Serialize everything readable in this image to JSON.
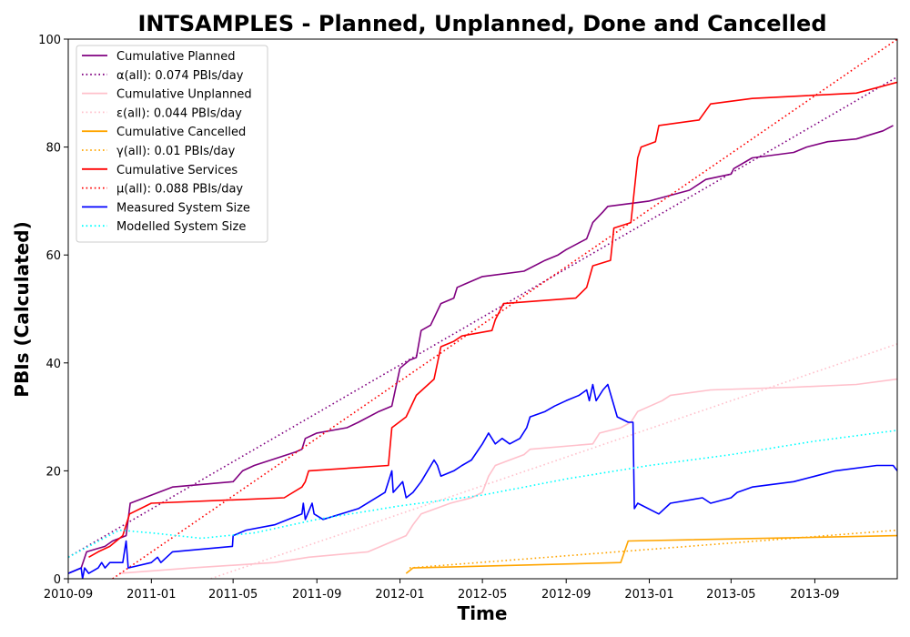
{
  "chart_data": {
    "type": "line",
    "title": "INTSAMPLES - Planned, Unplanned, Done  and Cancelled",
    "xlabel": "Time",
    "ylabel": "PBIs (Calculated)",
    "x_range": [
      "2010-09-01",
      "2013-12-31"
    ],
    "ylim": [
      0,
      100
    ],
    "x_ticks": [
      "2010-09",
      "2011-01",
      "2011-05",
      "2011-09",
      "2012-01",
      "2012-05",
      "2012-09",
      "2013-01",
      "2013-05",
      "2013-09"
    ],
    "y_ticks": [
      0,
      20,
      40,
      60,
      80,
      100
    ],
    "grid": false,
    "legend_position": "top-left",
    "series": [
      {
        "name": "Cumulative Planned",
        "color": "#800080",
        "style": "solid",
        "points": [
          [
            "2010-09-01",
            1
          ],
          [
            "2010-09-20",
            2
          ],
          [
            "2010-09-28",
            5
          ],
          [
            "2010-10-25",
            6
          ],
          [
            "2010-11-05",
            7
          ],
          [
            "2010-11-25",
            8
          ],
          [
            "2010-12-01",
            14
          ],
          [
            "2011-01-01",
            15.5
          ],
          [
            "2011-02-01",
            17
          ],
          [
            "2011-05-01",
            18
          ],
          [
            "2011-05-15",
            20
          ],
          [
            "2011-06-01",
            21
          ],
          [
            "2011-08-01",
            23.5
          ],
          [
            "2011-08-10",
            24
          ],
          [
            "2011-08-15",
            26
          ],
          [
            "2011-09-01",
            27
          ],
          [
            "2011-10-15",
            28
          ],
          [
            "2011-11-01",
            29
          ],
          [
            "2011-12-01",
            31
          ],
          [
            "2011-12-20",
            32
          ],
          [
            "2012-01-01",
            39
          ],
          [
            "2012-01-15",
            40.5
          ],
          [
            "2012-01-25",
            41
          ],
          [
            "2012-02-01",
            46
          ],
          [
            "2012-02-15",
            47
          ],
          [
            "2012-03-01",
            51
          ],
          [
            "2012-03-20",
            52
          ],
          [
            "2012-03-25",
            54
          ],
          [
            "2012-05-01",
            56
          ],
          [
            "2012-07-01",
            57
          ],
          [
            "2012-08-01",
            59
          ],
          [
            "2012-08-20",
            60
          ],
          [
            "2012-09-01",
            61
          ],
          [
            "2012-10-01",
            63
          ],
          [
            "2012-10-10",
            66
          ],
          [
            "2012-10-25",
            68
          ],
          [
            "2012-11-01",
            69
          ],
          [
            "2013-01-01",
            70
          ],
          [
            "2013-03-01",
            72
          ],
          [
            "2013-03-25",
            74
          ],
          [
            "2013-05-01",
            75
          ],
          [
            "2013-05-05",
            76
          ],
          [
            "2013-06-01",
            78
          ],
          [
            "2013-08-01",
            79
          ],
          [
            "2013-08-20",
            80
          ],
          [
            "2013-09-20",
            81
          ],
          [
            "2013-11-01",
            81.5
          ],
          [
            "2013-12-10",
            83
          ],
          [
            "2013-12-25",
            84
          ]
        ]
      },
      {
        "name": "α(all): 0.074 PBIs/day",
        "color": "#800080",
        "style": "dotted",
        "points": [
          [
            "2010-09-01",
            4
          ],
          [
            "2013-12-31",
            93
          ]
        ]
      },
      {
        "name": "Cumulative Unplanned",
        "color": "#ffc0cb",
        "style": "solid",
        "points": [
          [
            "2010-11-15",
            1
          ],
          [
            "2011-03-01",
            2
          ],
          [
            "2011-07-01",
            3
          ],
          [
            "2011-08-20",
            4
          ],
          [
            "2011-11-15",
            5
          ],
          [
            "2012-01-10",
            8
          ],
          [
            "2012-01-20",
            10
          ],
          [
            "2012-02-01",
            12
          ],
          [
            "2012-03-15",
            14
          ],
          [
            "2012-04-15",
            15
          ],
          [
            "2012-05-01",
            16
          ],
          [
            "2012-05-10",
            19
          ],
          [
            "2012-05-20",
            21
          ],
          [
            "2012-06-10",
            22
          ],
          [
            "2012-07-01",
            23
          ],
          [
            "2012-07-10",
            24
          ],
          [
            "2012-10-10",
            25
          ],
          [
            "2012-10-20",
            27
          ],
          [
            "2012-11-20",
            28
          ],
          [
            "2012-12-05",
            29
          ],
          [
            "2012-12-15",
            31
          ],
          [
            "2013-01-20",
            33
          ],
          [
            "2013-02-01",
            34
          ],
          [
            "2013-04-01",
            35
          ],
          [
            "2013-08-01",
            35.5
          ],
          [
            "2013-11-01",
            36
          ],
          [
            "2013-12-31",
            37
          ]
        ]
      },
      {
        "name": "ε(all): 0.044 PBIs/day",
        "color": "#ffc0cb",
        "style": "dotted",
        "points": [
          [
            "2010-09-01",
            -9
          ],
          [
            "2013-12-31",
            43.5
          ]
        ]
      },
      {
        "name": "Cumulative Cancelled",
        "color": "#ffa500",
        "style": "solid",
        "points": [
          [
            "2012-01-10",
            1
          ],
          [
            "2012-01-20",
            2
          ],
          [
            "2012-11-20",
            3
          ],
          [
            "2012-12-01",
            7
          ],
          [
            "2013-12-31",
            8
          ]
        ]
      },
      {
        "name": "γ(all): 0.01 PBIs/day",
        "color": "#ffa500",
        "style": "dotted",
        "points": [
          [
            "2012-01-15",
            2
          ],
          [
            "2013-12-31",
            9
          ]
        ]
      },
      {
        "name": "Cumulative Services",
        "color": "#ff0000",
        "style": "solid",
        "points": [
          [
            "2010-10-01",
            4
          ],
          [
            "2010-10-15",
            5
          ],
          [
            "2010-11-01",
            6
          ],
          [
            "2010-11-20",
            8
          ],
          [
            "2010-11-30",
            12
          ],
          [
            "2011-01-01",
            14
          ],
          [
            "2011-07-15",
            15
          ],
          [
            "2011-08-10",
            17
          ],
          [
            "2011-08-15",
            18
          ],
          [
            "2011-08-20",
            20
          ],
          [
            "2011-12-15",
            21
          ],
          [
            "2011-12-20",
            28
          ],
          [
            "2012-01-10",
            30
          ],
          [
            "2012-01-25",
            34
          ],
          [
            "2012-02-20",
            37
          ],
          [
            "2012-03-01",
            43
          ],
          [
            "2012-03-20",
            44
          ],
          [
            "2012-04-01",
            45
          ],
          [
            "2012-05-15",
            46
          ],
          [
            "2012-05-20",
            48
          ],
          [
            "2012-06-01",
            51
          ],
          [
            "2012-09-15",
            52
          ],
          [
            "2012-10-01",
            54
          ],
          [
            "2012-10-10",
            58
          ],
          [
            "2012-11-05",
            59
          ],
          [
            "2012-11-10",
            65
          ],
          [
            "2012-12-05",
            66
          ],
          [
            "2012-12-15",
            78
          ],
          [
            "2012-12-20",
            80
          ],
          [
            "2013-01-10",
            81
          ],
          [
            "2013-01-15",
            84
          ],
          [
            "2013-03-15",
            85
          ],
          [
            "2013-04-01",
            88
          ],
          [
            "2013-06-01",
            89
          ],
          [
            "2013-11-01",
            90
          ],
          [
            "2013-12-31",
            92
          ]
        ]
      },
      {
        "name": "μ(all): 0.088 PBIs/day",
        "color": "#ff0000",
        "style": "dotted",
        "points": [
          [
            "2010-11-05",
            0
          ],
          [
            "2013-12-31",
            100
          ]
        ]
      },
      {
        "name": "Measured System Size",
        "color": "#0000ff",
        "style": "solid",
        "points": [
          [
            "2010-09-01",
            1
          ],
          [
            "2010-09-20",
            2
          ],
          [
            "2010-09-22",
            0
          ],
          [
            "2010-09-25",
            2
          ],
          [
            "2010-10-01",
            1
          ],
          [
            "2010-10-15",
            2
          ],
          [
            "2010-10-20",
            3
          ],
          [
            "2010-10-25",
            2
          ],
          [
            "2010-11-01",
            3
          ],
          [
            "2010-11-20",
            3
          ],
          [
            "2010-11-25",
            7
          ],
          [
            "2010-11-28",
            2
          ],
          [
            "2011-01-01",
            3
          ],
          [
            "2011-01-10",
            4
          ],
          [
            "2011-01-15",
            3
          ],
          [
            "2011-02-01",
            5
          ],
          [
            "2011-04-30",
            6
          ],
          [
            "2011-05-01",
            8
          ],
          [
            "2011-05-20",
            9
          ],
          [
            "2011-07-01",
            10
          ],
          [
            "2011-08-10",
            12
          ],
          [
            "2011-08-12",
            14
          ],
          [
            "2011-08-15",
            11
          ],
          [
            "2011-08-25",
            14
          ],
          [
            "2011-08-28",
            12
          ],
          [
            "2011-09-10",
            11
          ],
          [
            "2011-11-01",
            13
          ],
          [
            "2011-12-10",
            16
          ],
          [
            "2011-12-20",
            20
          ],
          [
            "2011-12-22",
            16
          ],
          [
            "2012-01-05",
            18
          ],
          [
            "2012-01-10",
            15
          ],
          [
            "2012-01-20",
            16
          ],
          [
            "2012-02-01",
            18
          ],
          [
            "2012-02-20",
            22
          ],
          [
            "2012-02-25",
            21
          ],
          [
            "2012-03-01",
            19
          ],
          [
            "2012-03-20",
            20
          ],
          [
            "2012-04-01",
            21
          ],
          [
            "2012-04-15",
            22
          ],
          [
            "2012-05-01",
            25
          ],
          [
            "2012-05-10",
            27
          ],
          [
            "2012-05-20",
            25
          ],
          [
            "2012-05-30",
            26
          ],
          [
            "2012-06-10",
            25
          ],
          [
            "2012-06-25",
            26
          ],
          [
            "2012-07-05",
            28
          ],
          [
            "2012-07-10",
            30
          ],
          [
            "2012-08-01",
            31
          ],
          [
            "2012-08-15",
            32
          ],
          [
            "2012-09-01",
            33
          ],
          [
            "2012-09-20",
            34
          ],
          [
            "2012-10-01",
            35
          ],
          [
            "2012-10-05",
            33
          ],
          [
            "2012-10-10",
            36
          ],
          [
            "2012-10-15",
            33
          ],
          [
            "2012-10-25",
            35
          ],
          [
            "2012-11-01",
            36
          ],
          [
            "2012-11-15",
            30
          ],
          [
            "2012-12-01",
            29
          ],
          [
            "2012-12-08",
            29
          ],
          [
            "2012-12-10",
            13
          ],
          [
            "2012-12-15",
            14
          ],
          [
            "2013-01-15",
            12
          ],
          [
            "2013-02-01",
            14
          ],
          [
            "2013-03-20",
            15
          ],
          [
            "2013-04-01",
            14
          ],
          [
            "2013-05-01",
            15
          ],
          [
            "2013-05-10",
            16
          ],
          [
            "2013-06-01",
            17
          ],
          [
            "2013-08-01",
            18
          ],
          [
            "2013-09-01",
            19
          ],
          [
            "2013-10-01",
            20
          ],
          [
            "2013-12-01",
            21
          ],
          [
            "2013-12-25",
            21
          ],
          [
            "2013-12-31",
            20
          ]
        ]
      },
      {
        "name": "Modelled System Size",
        "color": "#00ffff",
        "style": "dotted",
        "points": [
          [
            "2010-09-01",
            4
          ],
          [
            "2010-11-15",
            9
          ],
          [
            "2011-01-01",
            8.5
          ],
          [
            "2011-03-15",
            7.5
          ],
          [
            "2011-06-01",
            8.5
          ],
          [
            "2011-09-01",
            11
          ],
          [
            "2012-01-01",
            13.5
          ],
          [
            "2012-05-01",
            15.5
          ],
          [
            "2012-09-01",
            18.5
          ],
          [
            "2013-01-01",
            21
          ],
          [
            "2013-05-01",
            23
          ],
          [
            "2013-09-01",
            25.5
          ],
          [
            "2013-12-31",
            27.5
          ]
        ]
      }
    ]
  }
}
